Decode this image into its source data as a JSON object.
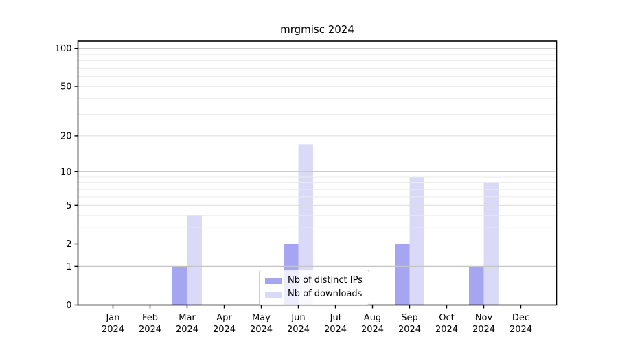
{
  "figure": {
    "background": "#ffffff"
  },
  "chart_data": {
    "type": "bar",
    "title": "mrgmisc 2024",
    "year_label": "2024",
    "categories": [
      "Jan",
      "Feb",
      "Mar",
      "Apr",
      "May",
      "Jun",
      "Jul",
      "Aug",
      "Sep",
      "Oct",
      "Nov",
      "Dec"
    ],
    "series": [
      {
        "name": "Nb of distinct IPs",
        "color": "#a5a5f2",
        "values": [
          0,
          0,
          1,
          0,
          0,
          2,
          0,
          0,
          2,
          0,
          1,
          0
        ]
      },
      {
        "name": "Nb of downloads",
        "color": "#dadaf8",
        "values": [
          0,
          0,
          4,
          0,
          0,
          17,
          0,
          0,
          9,
          0,
          8,
          0
        ]
      }
    ],
    "xlabel": "",
    "ylabel": "",
    "yscale": "log1p",
    "yticks": [
      0,
      1,
      2,
      5,
      10,
      20,
      50,
      100
    ],
    "minor_yticks": [
      3,
      4,
      6,
      7,
      8,
      9,
      30,
      40,
      60,
      70,
      80,
      90
    ],
    "ylim": [
      0,
      113
    ],
    "grid": true,
    "grid_over_bars": true,
    "legend_position": "lower center",
    "colors": {
      "axis": "#000000",
      "text": "#000000",
      "grid_decade": "#c4c4c4",
      "grid_labeled": "#dcdcdc",
      "grid_minor": "#ebebeb",
      "legend_border": "#cccccc"
    }
  }
}
